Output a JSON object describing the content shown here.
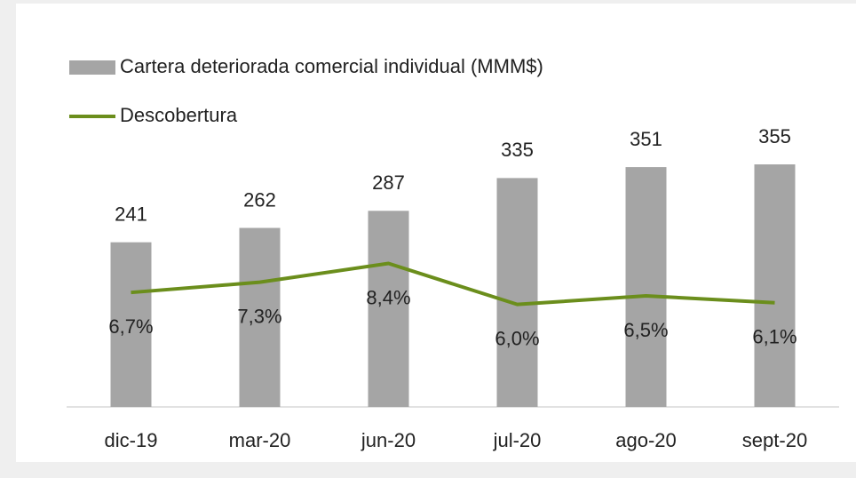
{
  "chart_data": {
    "type": "bar_line",
    "categories": [
      "dic-19",
      "mar-20",
      "jun-20",
      "jul-20",
      "ago-20",
      "sept-20"
    ],
    "series": [
      {
        "name": "Cartera deteriorada comercial individual (MMM$)",
        "type": "bar",
        "color": "#a5a5a5",
        "values": [
          241,
          262,
          287,
          335,
          351,
          355
        ]
      },
      {
        "name": "Descobertura",
        "type": "line",
        "axis": "y2",
        "color": "#6b8e1c",
        "values": [
          6.7,
          7.3,
          8.4,
          6.0,
          6.5,
          6.1
        ],
        "value_labels": [
          "6,7%",
          "7,3%",
          "8,4%",
          "6,0%",
          "6,5%",
          "6,1%"
        ]
      }
    ],
    "ylim": [
      0,
      500
    ],
    "y2lim": [
      0,
      20
    ],
    "grid": false,
    "legend": "top-left"
  }
}
